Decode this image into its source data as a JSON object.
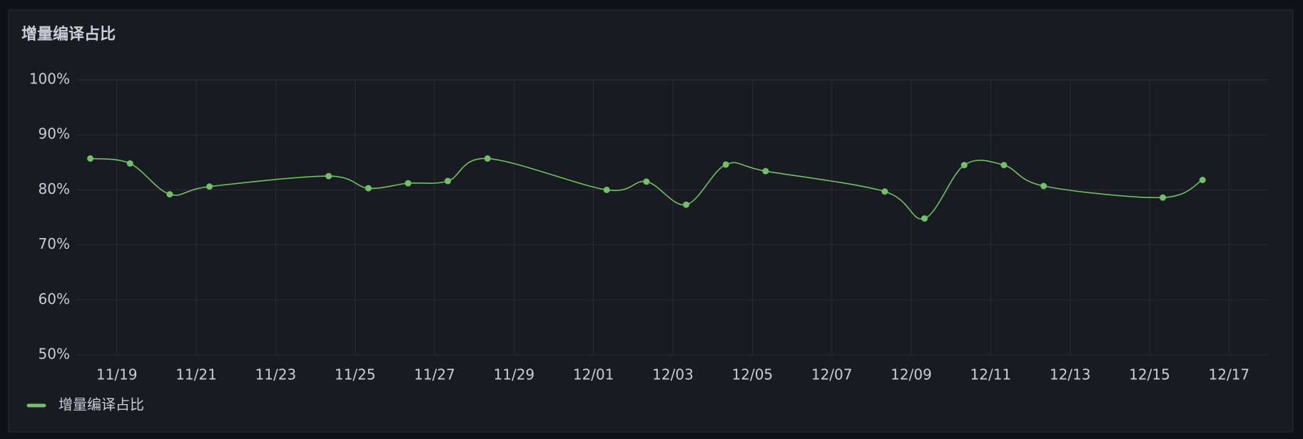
{
  "chart_data": {
    "type": "line",
    "title": "增量编译占比",
    "x": [
      "11/18",
      "11/19",
      "11/20",
      "11/21",
      "11/24",
      "11/25",
      "11/26",
      "11/27",
      "11/28",
      "12/01",
      "12/02",
      "12/03",
      "12/04",
      "12/05",
      "12/08",
      "12/09",
      "12/10",
      "12/11",
      "12/12",
      "12/15",
      "12/16"
    ],
    "series": [
      {
        "name": "增量编译占比",
        "color": "#73bf69",
        "values": [
          85.7,
          84.8,
          79.2,
          80.6,
          82.5,
          80.3,
          81.2,
          81.6,
          85.7,
          80.0,
          81.5,
          77.3,
          84.6,
          83.4,
          79.7,
          74.8,
          84.5,
          84.5,
          80.7,
          78.6,
          81.8
        ]
      }
    ],
    "xlim": [
      "11/18",
      "12/18"
    ],
    "xticks": [
      "11/19",
      "11/21",
      "11/23",
      "11/25",
      "11/27",
      "11/29",
      "12/01",
      "12/03",
      "12/05",
      "12/07",
      "12/09",
      "12/11",
      "12/13",
      "12/15",
      "12/17"
    ],
    "ylim": [
      50,
      100
    ],
    "yticks": [
      {
        "value": 50,
        "label": "50%"
      },
      {
        "value": 60,
        "label": "60%"
      },
      {
        "value": 70,
        "label": "70%"
      },
      {
        "value": 80,
        "label": "80%"
      },
      {
        "value": 90,
        "label": "90%"
      },
      {
        "value": 100,
        "label": "100%"
      }
    ],
    "grid": true,
    "legend": "bottom-left"
  }
}
